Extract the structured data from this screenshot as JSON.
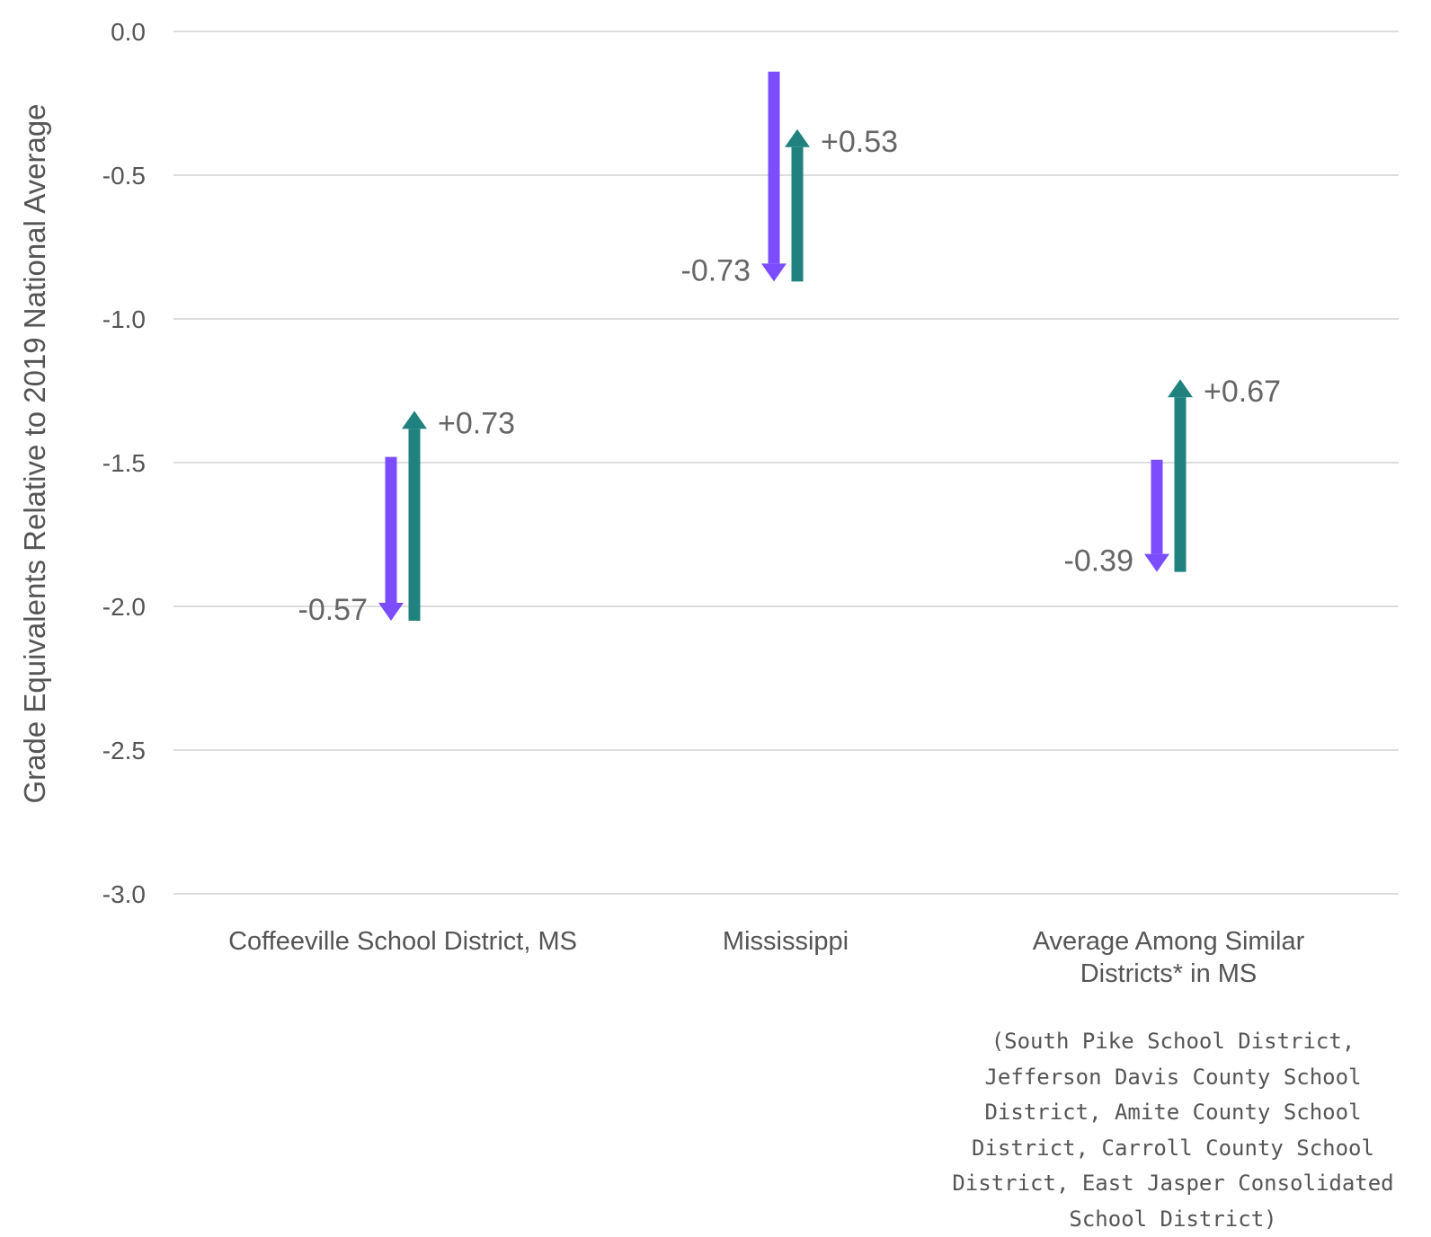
{
  "chart_data": {
    "type": "bar",
    "ylabel": "Grade Equivalents Relative to 2019 National Average",
    "ylim": [
      -3.0,
      0.0
    ],
    "yticks": [
      0.0,
      -0.5,
      -1.0,
      -1.5,
      -2.0,
      -2.5,
      -3.0
    ],
    "ytick_labels": [
      "0.0",
      "-0.5",
      "-1.0",
      "-1.5",
      "-2.0",
      "-2.5",
      "-3.0"
    ],
    "grid": true,
    "categories": [
      {
        "lines": [
          "Coffeeville School District, MS"
        ]
      },
      {
        "lines": [
          "Mississippi"
        ]
      },
      {
        "lines": [
          "Average Among Similar",
          "Districts* in MS"
        ]
      }
    ],
    "series": [
      {
        "color": "#7c4dff",
        "direction": "down",
        "start": [
          -1.48,
          -0.14,
          -1.49
        ],
        "end": [
          -2.05,
          -0.87,
          -1.88
        ],
        "labels": [
          "-0.57",
          "-0.73",
          "-0.39"
        ]
      },
      {
        "color": "#1f827e",
        "direction": "up",
        "start": [
          -2.05,
          -0.87,
          -1.88
        ],
        "end": [
          -1.32,
          -0.34,
          -1.21
        ],
        "labels": [
          "+0.73",
          "+0.53",
          "+0.67"
        ]
      }
    ],
    "note": "(South Pike School District, Jefferson Davis County School District, Amite County School District, Carroll County School District, East Jasper Consolidated School District)"
  }
}
